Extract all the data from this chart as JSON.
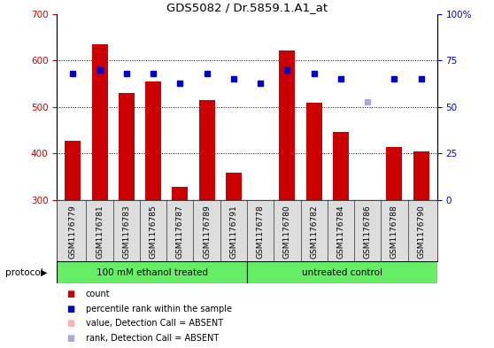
{
  "title": "GDS5082 / Dr.5859.1.A1_at",
  "samples": [
    "GSM1176779",
    "GSM1176781",
    "GSM1176783",
    "GSM1176785",
    "GSM1176787",
    "GSM1176789",
    "GSM1176791",
    "GSM1176778",
    "GSM1176780",
    "GSM1176782",
    "GSM1176784",
    "GSM1176786",
    "GSM1176788",
    "GSM1176790"
  ],
  "counts": [
    428,
    635,
    530,
    555,
    328,
    515,
    358,
    300,
    622,
    510,
    447,
    300,
    415,
    405
  ],
  "ranks": [
    68,
    70,
    68,
    68,
    63,
    68,
    65,
    63,
    70,
    68,
    65,
    53,
    65,
    65
  ],
  "absent_flags": [
    false,
    false,
    false,
    false,
    false,
    false,
    false,
    false,
    false,
    false,
    false,
    true,
    false,
    false
  ],
  "left_ylim": [
    300,
    700
  ],
  "right_ylim": [
    0,
    100
  ],
  "left_yticks": [
    300,
    400,
    500,
    600,
    700
  ],
  "right_yticks": [
    0,
    25,
    50,
    75,
    100
  ],
  "group1_label": "100 mM ethanol treated",
  "group2_label": "untreated control",
  "group1_count": 7,
  "group2_count": 7,
  "bar_color": "#CC0000",
  "absent_bar_color": "#FFB0B0",
  "rank_color": "#0000CC",
  "absent_rank_color": "#AAAADD",
  "legend_items": [
    {
      "label": "count",
      "color": "#CC0000"
    },
    {
      "label": "percentile rank within the sample",
      "color": "#0000CC"
    },
    {
      "label": "value, Detection Call = ABSENT",
      "color": "#FFB0B0"
    },
    {
      "label": "rank, Detection Call = ABSENT",
      "color": "#AAAADD"
    }
  ],
  "grid_color": "#000000",
  "grid_linestyle": "dotted",
  "grid_linewidth": 0.7,
  "bar_width": 0.6,
  "rank_markersize": 5,
  "group_color": "#66EE66",
  "xtick_bg": "#DDDDDD"
}
